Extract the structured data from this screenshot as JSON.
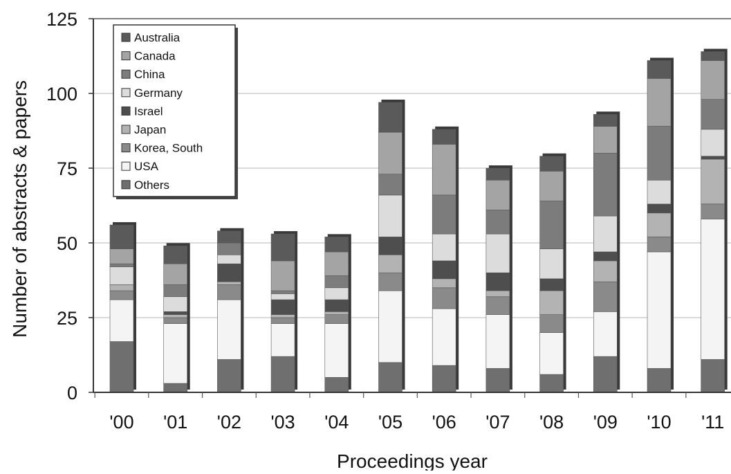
{
  "chart_data": {
    "type": "bar",
    "stacked": true,
    "title": "",
    "xlabel": "Proceedings year",
    "ylabel": "Number of abstracts & papers",
    "ylim": [
      0,
      125
    ],
    "yticks": [
      0,
      25,
      50,
      75,
      100,
      125
    ],
    "grid": true,
    "legend_position": "top-left",
    "categories": [
      "'00",
      "'01",
      "'02",
      "'03",
      "'04",
      "'05",
      "'06",
      "'07",
      "'08",
      "'09",
      "'10",
      "'11"
    ],
    "series": [
      {
        "name": "Others",
        "color": "#6f6f6f",
        "values": [
          17,
          3,
          11,
          12,
          5,
          10,
          9,
          8,
          6,
          12,
          8,
          11
        ]
      },
      {
        "name": "USA",
        "color": "#f4f4f4",
        "values": [
          14,
          20,
          20,
          11,
          18,
          24,
          19,
          18,
          14,
          15,
          39,
          47
        ]
      },
      {
        "name": "Korea, South",
        "color": "#8a8a8a",
        "values": [
          3,
          2,
          5,
          2,
          3,
          6,
          7,
          6,
          6,
          10,
          5,
          5
        ]
      },
      {
        "name": "Japan",
        "color": "#b3b3b3",
        "values": [
          2,
          1,
          1,
          1,
          1,
          6,
          3,
          2,
          8,
          7,
          8,
          15
        ]
      },
      {
        "name": "Israel",
        "color": "#4e4e4e",
        "values": [
          0,
          1,
          6,
          5,
          4,
          6,
          6,
          6,
          4,
          3,
          3,
          1
        ]
      },
      {
        "name": "Germany",
        "color": "#dcdcdc",
        "values": [
          6,
          5,
          3,
          2,
          4,
          14,
          9,
          13,
          10,
          12,
          8,
          9
        ]
      },
      {
        "name": "China",
        "color": "#7c7c7c",
        "values": [
          1,
          4,
          4,
          1,
          4,
          7,
          13,
          8,
          16,
          21,
          18,
          10
        ]
      },
      {
        "name": "Canada",
        "color": "#a4a4a4",
        "values": [
          5,
          7,
          0,
          10,
          8,
          14,
          17,
          10,
          10,
          9,
          16,
          13
        ]
      },
      {
        "name": "Australia",
        "color": "#5a5a5a",
        "values": [
          8,
          6,
          4,
          9,
          5,
          10,
          5,
          4,
          5,
          4,
          6,
          3
        ]
      }
    ],
    "legend_order": [
      "Australia",
      "Canada",
      "China",
      "Germany",
      "Israel",
      "Japan",
      "Korea, South",
      "USA",
      "Others"
    ]
  }
}
